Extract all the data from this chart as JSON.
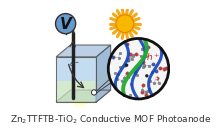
{
  "title": "Zn₂TTFTB-TiO₂ Conductive MOF Photoanode",
  "title_fontsize": 6.5,
  "bg_color": "#ffffff",
  "fig_width": 1.81,
  "fig_height": 1.89,
  "sun_color_core": "#F8B800",
  "sun_color_ray": "#F5A000",
  "sun_ray_count": 18,
  "voltmeter_color": "#6699CC",
  "voltmeter_border": "#333333",
  "box_front_color": "#C8DCF0",
  "box_top_color": "#B0C8E0",
  "box_right_color": "#90B0D0",
  "liquid_color": "#D8EEB8",
  "electrode_color": "#222222",
  "mof_circle_bg": "#F5F5F5",
  "mof_circle_border": "#111111",
  "mof_blue_color": "#1144BB",
  "mof_green_color": "#22AA33",
  "atom_gray": "#888888",
  "atom_red": "#CC3333",
  "atom_blue": "#3355AA",
  "bond_color": "#AAAAAA",
  "hplus_color": "#CC2222",
  "beam_color": "#FFFF88",
  "beam_alpha": 0.45
}
